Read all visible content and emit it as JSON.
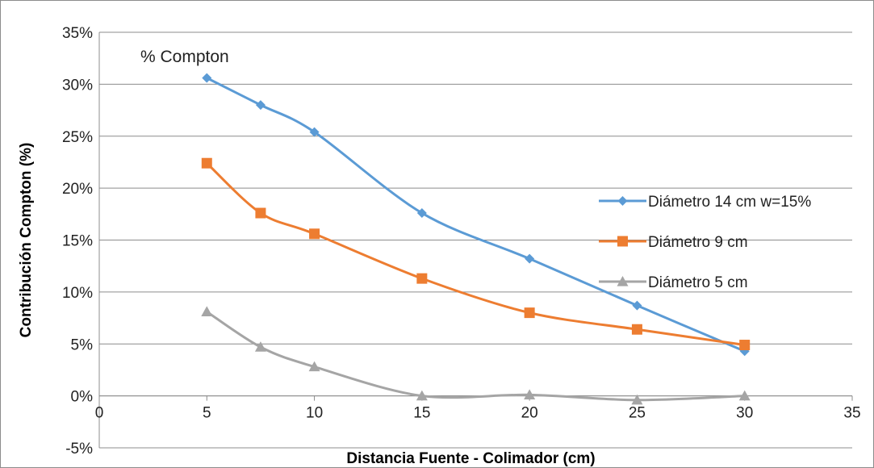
{
  "chart_data": {
    "type": "line",
    "title": "",
    "annotation": "% Compton",
    "xlabel": "Distancia Fuente - Colimador (cm)",
    "ylabel": "Contribución Compton (%)",
    "xlim": [
      0,
      35
    ],
    "ylim": [
      -5,
      35
    ],
    "x_ticks": [
      0,
      5,
      10,
      15,
      20,
      25,
      30,
      35
    ],
    "y_ticks": [
      -5,
      0,
      5,
      10,
      15,
      20,
      25,
      30,
      35
    ],
    "y_tick_suffix": "%",
    "grid": "horizontal",
    "legend_position": "right",
    "x": [
      5,
      7.5,
      10,
      15,
      20,
      25,
      30
    ],
    "series": [
      {
        "name": "Diámetro 14 cm  w=15%",
        "color": "#5B9BD5",
        "marker": "diamond",
        "values": [
          30.6,
          28.0,
          25.4,
          17.6,
          13.2,
          8.7,
          4.3
        ]
      },
      {
        "name": "Diámetro 9 cm",
        "color": "#ED7D31",
        "marker": "square",
        "values": [
          22.4,
          17.6,
          15.6,
          11.3,
          8.0,
          6.4,
          4.9
        ]
      },
      {
        "name": "Diámetro 5 cm",
        "color": "#A5A5A5",
        "marker": "triangle",
        "values": [
          8.1,
          4.7,
          2.8,
          0.0,
          0.1,
          -0.4,
          0.0
        ]
      }
    ]
  }
}
